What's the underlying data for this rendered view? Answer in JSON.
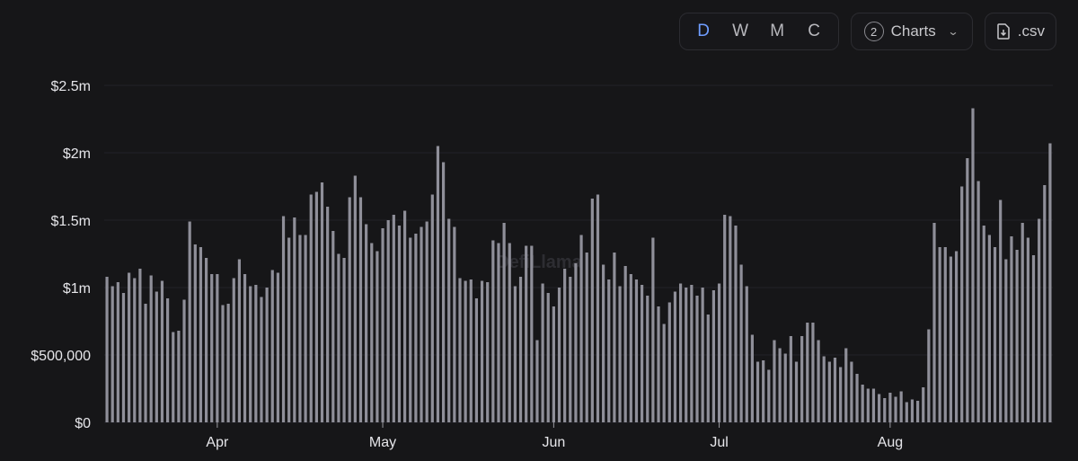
{
  "toolbar": {
    "granularity": [
      "D",
      "W",
      "M",
      "C"
    ],
    "active_granularity": "D",
    "charts_count": "2",
    "charts_label": "Charts",
    "csv_label": ".csv"
  },
  "watermark": "DefiLlama",
  "chart_data": {
    "type": "bar",
    "title": "",
    "xlabel": "",
    "ylabel": "",
    "ylim": [
      0,
      2500000
    ],
    "y_ticks": [
      {
        "value": 0,
        "label": "$0"
      },
      {
        "value": 500000,
        "label": "$500,000"
      },
      {
        "value": 1000000,
        "label": "$1m"
      },
      {
        "value": 1500000,
        "label": "$1.5m"
      },
      {
        "value": 2000000,
        "label": "$2m"
      },
      {
        "value": 2500000,
        "label": "$2.5m"
      }
    ],
    "x_ticks": [
      {
        "index": 20,
        "label": "Apr"
      },
      {
        "index": 50,
        "label": "May"
      },
      {
        "index": 81,
        "label": "Jun"
      },
      {
        "index": 111,
        "label": "Jul"
      },
      {
        "index": 142,
        "label": "Aug"
      }
    ],
    "grid": true,
    "bar_color": "#8f8f99",
    "values": [
      1080000,
      1010000,
      1040000,
      960000,
      1110000,
      1070000,
      1140000,
      880000,
      1090000,
      970000,
      1050000,
      920000,
      670000,
      680000,
      910000,
      1490000,
      1320000,
      1300000,
      1220000,
      1100000,
      1100000,
      870000,
      880000,
      1070000,
      1210000,
      1100000,
      1010000,
      1020000,
      930000,
      1000000,
      1130000,
      1110000,
      1530000,
      1370000,
      1520000,
      1390000,
      1390000,
      1690000,
      1710000,
      1780000,
      1600000,
      1420000,
      1250000,
      1220000,
      1670000,
      1830000,
      1670000,
      1470000,
      1330000,
      1270000,
      1440000,
      1500000,
      1540000,
      1460000,
      1570000,
      1370000,
      1400000,
      1450000,
      1490000,
      1690000,
      2050000,
      1930000,
      1510000,
      1450000,
      1070000,
      1050000,
      1060000,
      920000,
      1050000,
      1040000,
      1350000,
      1330000,
      1480000,
      1330000,
      1010000,
      1080000,
      1310000,
      1310000,
      610000,
      1030000,
      960000,
      860000,
      1000000,
      1140000,
      1080000,
      1180000,
      1390000,
      1260000,
      1660000,
      1690000,
      1170000,
      1060000,
      1260000,
      1010000,
      1160000,
      1100000,
      1060000,
      1020000,
      940000,
      1370000,
      860000,
      730000,
      890000,
      970000,
      1030000,
      1000000,
      1020000,
      940000,
      1000000,
      800000,
      980000,
      1030000,
      1540000,
      1530000,
      1460000,
      1170000,
      1010000,
      650000,
      450000,
      460000,
      390000,
      610000,
      550000,
      510000,
      640000,
      450000,
      640000,
      740000,
      740000,
      610000,
      490000,
      450000,
      480000,
      410000,
      550000,
      450000,
      360000,
      280000,
      250000,
      250000,
      210000,
      180000,
      220000,
      190000,
      230000,
      150000,
      170000,
      160000,
      260000,
      690000,
      1480000,
      1300000,
      1300000,
      1230000,
      1270000,
      1750000,
      1960000,
      2330000,
      1790000,
      1460000,
      1390000,
      1300000,
      1650000,
      1210000,
      1380000,
      1280000,
      1480000,
      1370000,
      1240000,
      1510000,
      1760000,
      2070000
    ]
  }
}
